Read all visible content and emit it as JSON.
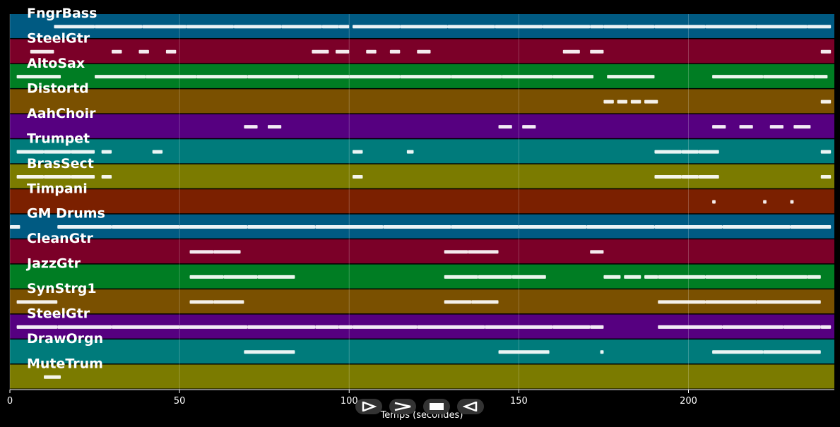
{
  "chart_data": {
    "type": "piano-roll",
    "xlabel": "Temps (secondes)",
    "xlim": [
      0,
      243
    ],
    "xticks": [
      0,
      50,
      100,
      150,
      200
    ],
    "grid": true,
    "tracks": [
      {
        "name": "FngrBass",
        "color": "#005a82",
        "notes": [
          [
            13,
            25
          ],
          [
            25,
            39
          ],
          [
            39,
            52
          ],
          [
            52,
            66
          ],
          [
            66,
            80
          ],
          [
            80,
            92
          ],
          [
            92,
            97
          ],
          [
            97,
            100
          ],
          [
            101,
            115
          ],
          [
            115,
            129
          ],
          [
            129,
            143
          ],
          [
            143,
            157
          ],
          [
            157,
            171
          ],
          [
            171,
            175
          ],
          [
            175,
            182
          ],
          [
            182,
            190
          ],
          [
            190,
            205
          ],
          [
            205,
            220
          ],
          [
            220,
            235
          ],
          [
            235,
            242
          ]
        ]
      },
      {
        "name": "SteelGtr",
        "color": "#7b0028",
        "notes": [
          [
            6,
            13
          ],
          [
            30,
            33
          ],
          [
            38,
            41
          ],
          [
            46,
            49
          ],
          [
            89,
            94
          ],
          [
            96,
            100
          ],
          [
            105,
            108
          ],
          [
            112,
            115
          ],
          [
            120,
            124
          ],
          [
            163,
            168
          ],
          [
            171,
            175
          ],
          [
            239,
            242
          ]
        ]
      },
      {
        "name": "AltoSax",
        "color": "#007d23",
        "notes": [
          [
            2,
            15
          ],
          [
            25,
            40
          ],
          [
            40,
            55
          ],
          [
            55,
            70
          ],
          [
            70,
            85
          ],
          [
            85,
            100
          ],
          [
            100,
            115
          ],
          [
            115,
            130
          ],
          [
            130,
            145
          ],
          [
            145,
            160
          ],
          [
            160,
            172
          ],
          [
            176,
            190
          ],
          [
            207,
            222
          ],
          [
            222,
            237
          ],
          [
            237,
            241
          ]
        ]
      },
      {
        "name": "Distortd",
        "color": "#7a5000",
        "notes": [
          [
            175,
            178
          ],
          [
            179,
            182
          ],
          [
            183,
            186
          ],
          [
            187,
            191
          ],
          [
            239,
            242
          ]
        ]
      },
      {
        "name": "AahChoir",
        "color": "#560080",
        "notes": [
          [
            69,
            73
          ],
          [
            76,
            80
          ],
          [
            144,
            148
          ],
          [
            151,
            155
          ],
          [
            207,
            211
          ],
          [
            215,
            219
          ],
          [
            224,
            228
          ],
          [
            231,
            236
          ]
        ]
      },
      {
        "name": "Trumpet",
        "color": "#007b7b",
        "notes": [
          [
            2,
            10
          ],
          [
            10,
            18
          ],
          [
            18,
            25
          ],
          [
            27,
            30
          ],
          [
            42,
            45
          ],
          [
            101,
            104
          ],
          [
            117,
            119
          ],
          [
            190,
            198
          ],
          [
            198,
            203
          ],
          [
            203,
            209
          ],
          [
            239,
            242
          ]
        ]
      },
      {
        "name": "BrasSect",
        "color": "#7b7b00",
        "notes": [
          [
            2,
            10
          ],
          [
            10,
            18
          ],
          [
            18,
            25
          ],
          [
            27,
            30
          ],
          [
            101,
            104
          ],
          [
            190,
            198
          ],
          [
            198,
            203
          ],
          [
            203,
            209
          ],
          [
            239,
            242
          ]
        ]
      },
      {
        "name": "Timpani",
        "color": "#7b2000",
        "notes": [
          [
            207,
            208
          ],
          [
            222,
            223
          ],
          [
            230,
            231
          ]
        ]
      },
      {
        "name": "GM Drums",
        "color": "#005a82",
        "notes": [
          [
            0,
            3
          ],
          [
            14,
            30
          ],
          [
            30,
            50
          ],
          [
            50,
            70
          ],
          [
            70,
            90
          ],
          [
            90,
            110
          ],
          [
            110,
            130
          ],
          [
            130,
            150
          ],
          [
            150,
            170
          ],
          [
            170,
            190
          ],
          [
            190,
            210
          ],
          [
            210,
            230
          ],
          [
            230,
            242
          ]
        ]
      },
      {
        "name": "CleanGtr",
        "color": "#7b0028",
        "notes": [
          [
            53,
            60
          ],
          [
            60,
            68
          ],
          [
            128,
            135
          ],
          [
            135,
            144
          ],
          [
            171,
            175
          ]
        ]
      },
      {
        "name": "JazzGtr",
        "color": "#007d23",
        "notes": [
          [
            53,
            63
          ],
          [
            63,
            73
          ],
          [
            73,
            84
          ],
          [
            128,
            138
          ],
          [
            138,
            148
          ],
          [
            148,
            158
          ],
          [
            175,
            180
          ],
          [
            181,
            186
          ],
          [
            187,
            191
          ],
          [
            191,
            205
          ],
          [
            205,
            220
          ],
          [
            220,
            235
          ],
          [
            235,
            239
          ]
        ]
      },
      {
        "name": "SynStrg1",
        "color": "#7a5000",
        "notes": [
          [
            2,
            14
          ],
          [
            53,
            60
          ],
          [
            60,
            69
          ],
          [
            128,
            136
          ],
          [
            136,
            144
          ],
          [
            191,
            205
          ],
          [
            205,
            220
          ],
          [
            220,
            239
          ]
        ]
      },
      {
        "name": "SteelGtr",
        "color": "#560080",
        "notes": [
          [
            2,
            14
          ],
          [
            14,
            30
          ],
          [
            30,
            50
          ],
          [
            50,
            70
          ],
          [
            70,
            90
          ],
          [
            90,
            97
          ],
          [
            97,
            101
          ],
          [
            101,
            120
          ],
          [
            120,
            140
          ],
          [
            140,
            160
          ],
          [
            160,
            171
          ],
          [
            171,
            175
          ],
          [
            191,
            210
          ],
          [
            210,
            228
          ],
          [
            228,
            239
          ],
          [
            239,
            242
          ]
        ]
      },
      {
        "name": "DrawOrgn",
        "color": "#007b7b",
        "notes": [
          [
            69,
            84
          ],
          [
            144,
            159
          ],
          [
            174,
            175
          ],
          [
            207,
            222
          ],
          [
            222,
            239
          ]
        ]
      },
      {
        "name": "MuteTrum",
        "color": "#7b7b00",
        "notes": [
          [
            10,
            15
          ]
        ]
      }
    ]
  },
  "controls": [
    {
      "name": "play-forward",
      "icon": "play-right-icon"
    },
    {
      "name": "fast-forward",
      "icon": "chevron-right-icon"
    },
    {
      "name": "stop",
      "icon": "stop-icon"
    },
    {
      "name": "play-backward",
      "icon": "play-left-icon"
    }
  ]
}
